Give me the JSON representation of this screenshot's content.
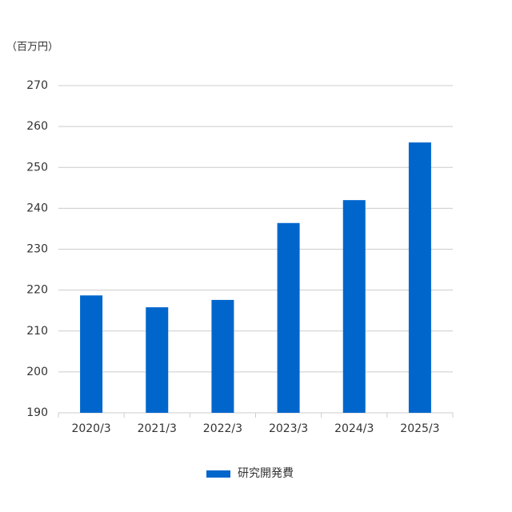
{
  "chart_data": {
    "type": "bar",
    "ylabel": "（百万円）",
    "categories": [
      "2020/3",
      "2021/3",
      "2022/3",
      "2023/3",
      "2024/3",
      "2025/3"
    ],
    "series": [
      {
        "name": "研究開発費",
        "color": "#0066cc",
        "values": [
          218.7,
          215.8,
          217.6,
          236.4,
          242.0,
          256.1
        ]
      }
    ],
    "ylim": [
      190,
      270
    ],
    "yticks": [
      190,
      200,
      210,
      220,
      230,
      240,
      250,
      260,
      270
    ],
    "grid": true,
    "legend": "bottom"
  }
}
